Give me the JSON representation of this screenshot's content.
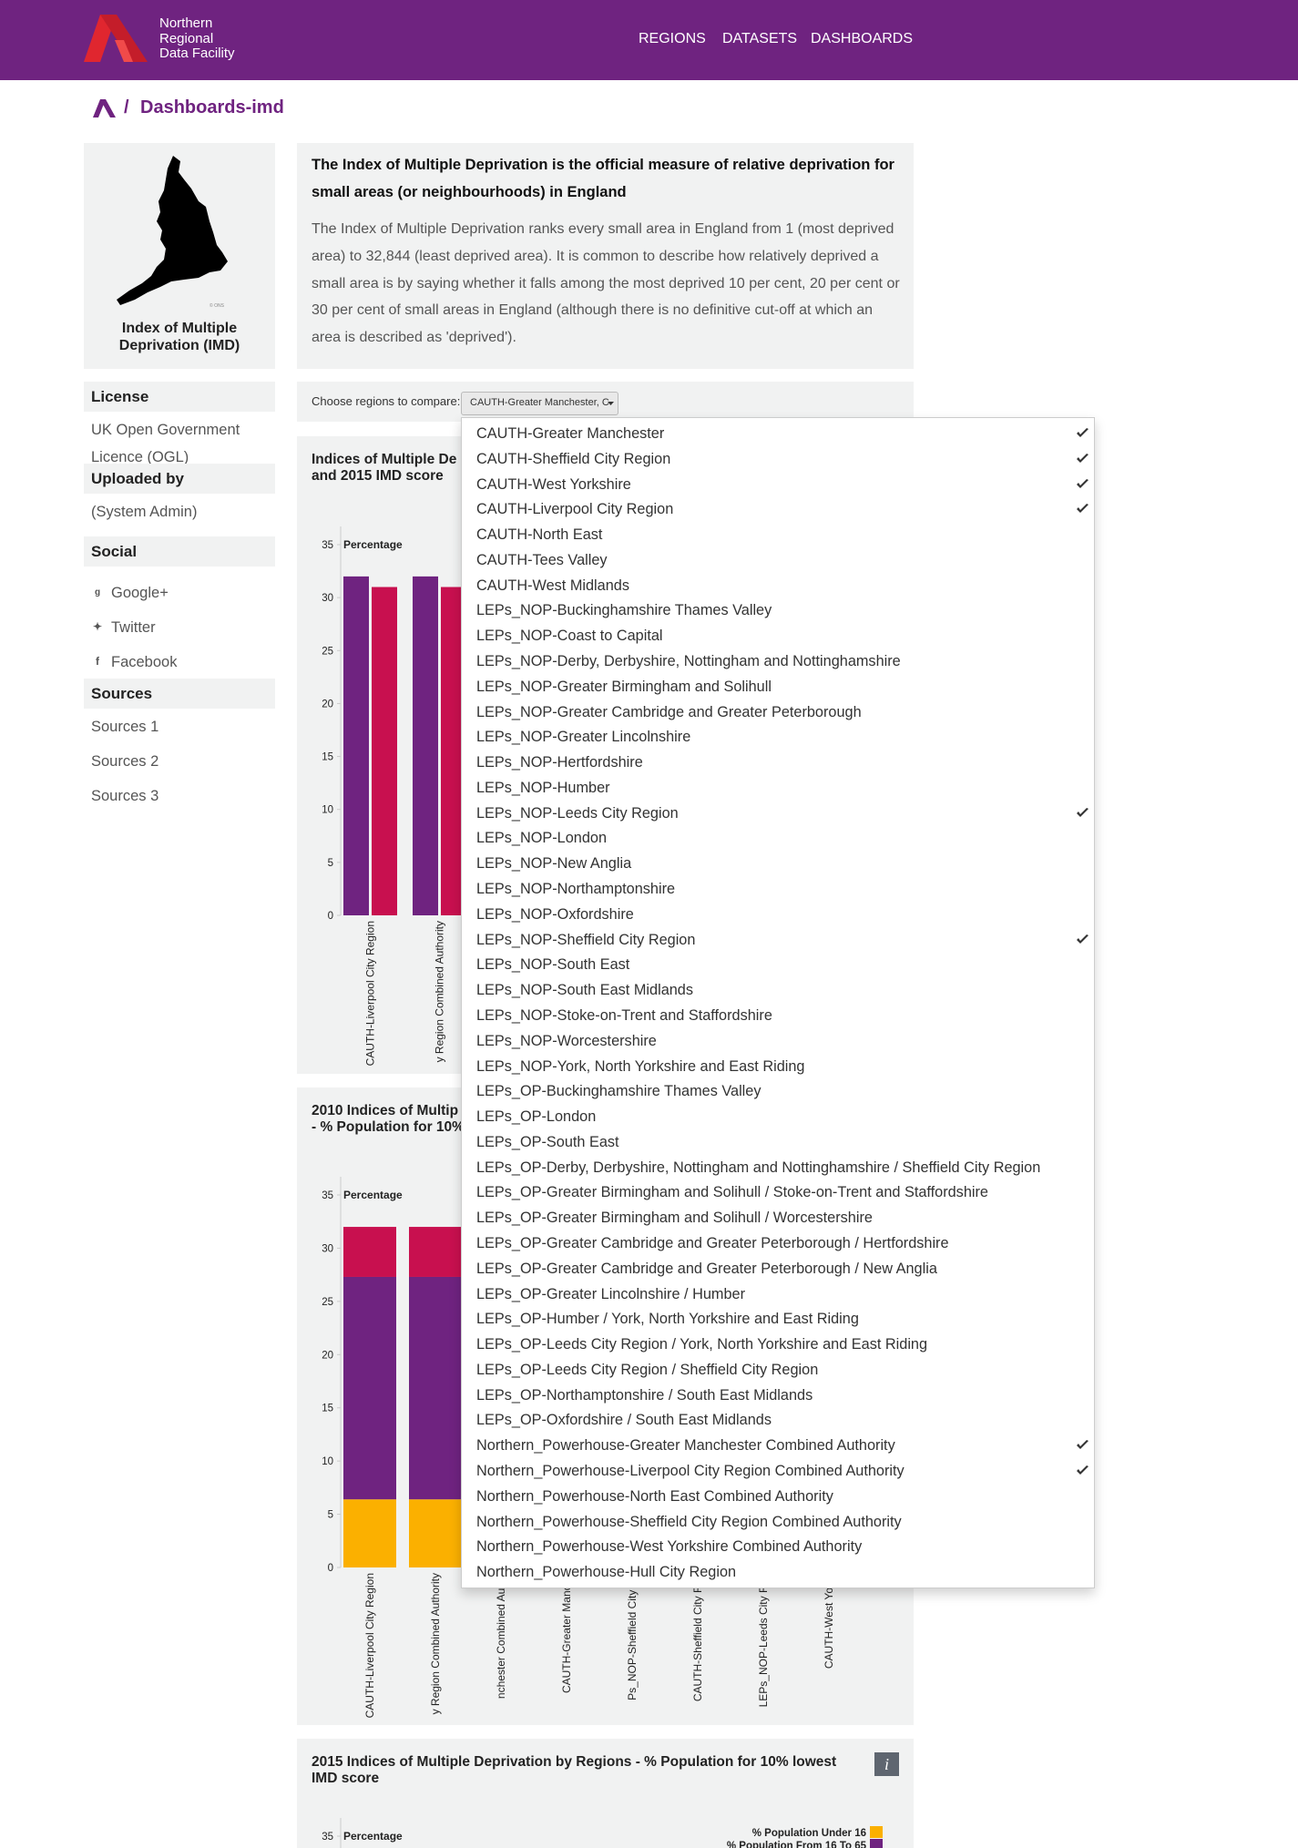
{
  "header": {
    "brand": [
      "Northern",
      "Regional",
      "Data Facility"
    ],
    "nav": [
      "REGIONS",
      "DATASETS",
      "DASHBOARDS"
    ]
  },
  "breadcrumb": {
    "separator": "/",
    "current": "Dashboards-imd"
  },
  "dataset_card": {
    "title": "Index of Multiple Deprivation (IMD)"
  },
  "sidebar": {
    "sections": [
      {
        "heading": "License",
        "items": [
          "UK Open Government Licence (OGL)"
        ]
      },
      {
        "heading": "Uploaded by",
        "items": [
          "(System Admin)"
        ]
      },
      {
        "heading": "Social",
        "items": [
          "Google+",
          "Twitter",
          "Facebook"
        ]
      },
      {
        "heading": "Sources",
        "items": [
          "Sources 1",
          "Sources 2",
          "Sources 3"
        ]
      }
    ]
  },
  "description": {
    "heading": "The Index of Multiple Deprivation is the official measure of relative deprivation for small areas (or neighbourhoods) in England",
    "body": "The Index of Multiple Deprivation ranks every small area in England from 1 (most deprived area) to 32,844 (least deprived area). It is common to describe how relatively deprived a small area is by saying whether it falls among the most deprived 10 per cent, 20 per cent or 30 per cent of small areas in England (although there is no definitive cut-off at which an area is described as 'deprived')."
  },
  "selector": {
    "label": "Choose regions to compare:",
    "button": "CAUTH-Greater Manchester, C",
    "options": [
      {
        "label": "CAUTH-Greater Manchester",
        "selected": true
      },
      {
        "label": "CAUTH-Sheffield City Region",
        "selected": true
      },
      {
        "label": "CAUTH-West Yorkshire",
        "selected": true
      },
      {
        "label": "CAUTH-Liverpool City Region",
        "selected": true
      },
      {
        "label": "CAUTH-North East",
        "selected": false
      },
      {
        "label": "CAUTH-Tees Valley",
        "selected": false
      },
      {
        "label": "CAUTH-West Midlands",
        "selected": false
      },
      {
        "label": "LEPs_NOP-Buckinghamshire Thames Valley",
        "selected": false
      },
      {
        "label": "LEPs_NOP-Coast to Capital",
        "selected": false
      },
      {
        "label": "LEPs_NOP-Derby, Derbyshire, Nottingham and Nottinghamshire",
        "selected": false
      },
      {
        "label": "LEPs_NOP-Greater Birmingham and Solihull",
        "selected": false
      },
      {
        "label": "LEPs_NOP-Greater Cambridge and Greater Peterborough",
        "selected": false
      },
      {
        "label": "LEPs_NOP-Greater Lincolnshire",
        "selected": false
      },
      {
        "label": "LEPs_NOP-Hertfordshire",
        "selected": false
      },
      {
        "label": "LEPs_NOP-Humber",
        "selected": false
      },
      {
        "label": "LEPs_NOP-Leeds City Region",
        "selected": true
      },
      {
        "label": "LEPs_NOP-London",
        "selected": false
      },
      {
        "label": "LEPs_NOP-New Anglia",
        "selected": false
      },
      {
        "label": "LEPs_NOP-Northamptonshire",
        "selected": false
      },
      {
        "label": "LEPs_NOP-Oxfordshire",
        "selected": false
      },
      {
        "label": "LEPs_NOP-Sheffield City Region",
        "selected": true
      },
      {
        "label": "LEPs_NOP-South East",
        "selected": false
      },
      {
        "label": "LEPs_NOP-South East Midlands",
        "selected": false
      },
      {
        "label": "LEPs_NOP-Stoke-on-Trent and Staffordshire",
        "selected": false
      },
      {
        "label": "LEPs_NOP-Worcestershire",
        "selected": false
      },
      {
        "label": "LEPs_NOP-York, North Yorkshire and East Riding",
        "selected": false
      },
      {
        "label": "LEPs_OP-Buckinghamshire Thames Valley",
        "selected": false
      },
      {
        "label": "LEPs_OP-London",
        "selected": false
      },
      {
        "label": "LEPs_OP-South East",
        "selected": false
      },
      {
        "label": "LEPs_OP-Derby, Derbyshire, Nottingham and Nottinghamshire / Sheffield City Region",
        "selected": false
      },
      {
        "label": "LEPs_OP-Greater Birmingham and Solihull / Stoke-on-Trent and Staffordshire",
        "selected": false
      },
      {
        "label": "LEPs_OP-Greater Birmingham and Solihull / Worcestershire",
        "selected": false
      },
      {
        "label": "LEPs_OP-Greater Cambridge and Greater Peterborough / Hertfordshire",
        "selected": false
      },
      {
        "label": "LEPs_OP-Greater Cambridge and Greater Peterborough / New Anglia",
        "selected": false
      },
      {
        "label": "LEPs_OP-Greater Lincolnshire / Humber",
        "selected": false
      },
      {
        "label": "LEPs_OP-Humber / York, North Yorkshire and East Riding",
        "selected": false
      },
      {
        "label": "LEPs_OP-Leeds City Region / York, North Yorkshire and East Riding",
        "selected": false
      },
      {
        "label": "LEPs_OP-Leeds City Region / Sheffield City Region",
        "selected": false
      },
      {
        "label": "LEPs_OP-Northamptonshire / South East Midlands",
        "selected": false
      },
      {
        "label": "LEPs_OP-Oxfordshire / South East Midlands",
        "selected": false
      },
      {
        "label": "Northern_Powerhouse-Greater Manchester Combined Authority",
        "selected": true
      },
      {
        "label": "Northern_Powerhouse-Liverpool City Region Combined Authority",
        "selected": true
      },
      {
        "label": "Northern_Powerhouse-North East Combined Authority",
        "selected": false
      },
      {
        "label": "Northern_Powerhouse-Sheffield City Region Combined Authority",
        "selected": false
      },
      {
        "label": "Northern_Powerhouse-West Yorkshire Combined Authority",
        "selected": false
      },
      {
        "label": "Northern_Powerhouse-Hull City Region",
        "selected": false
      }
    ]
  },
  "chart_data": [
    {
      "type": "bar",
      "title": [
        "Indices of Multiple De",
        "and 2015 IMD score"
      ],
      "y_label": "Percentage",
      "categories": [
        "CAUTH-Liverpool City Region",
        "y Region Combined Authority"
      ],
      "series": [
        {
          "color": "#6f2380",
          "values": [
            32,
            32
          ]
        },
        {
          "color": "#c8104f",
          "values": [
            31,
            31
          ]
        }
      ],
      "ylim": [
        0,
        35
      ],
      "yticks": [
        0,
        5,
        10,
        15,
        20,
        25,
        30,
        35
      ]
    },
    {
      "type": "stacked_bar",
      "title": [
        "2010 Indices of Multip",
        "- % Population for 10%"
      ],
      "y_label": "Percentage",
      "categories": [
        "CAUTH-Liverpool City Region",
        "y Region Combined Authority",
        "nchester Combined Autho",
        "CAUTH-Greater Manche",
        "Ps_NOP-Sheffield City Re",
        "CAUTH-Sheffield City Reg",
        "LEPs_NOP-Leeds City Reg",
        "CAUTH-West Yorks"
      ],
      "series": [
        {
          "color": "#fbb000",
          "values": [
            6.4,
            6.4,
            null,
            null,
            null,
            null,
            null,
            null
          ]
        },
        {
          "color": "#6f2380",
          "values": [
            20.9,
            20.9,
            null,
            null,
            null,
            null,
            null,
            null
          ]
        },
        {
          "color": "#c8104f",
          "values": [
            4.7,
            4.7,
            null,
            null,
            null,
            null,
            null,
            null
          ]
        }
      ],
      "ylim": [
        0,
        35
      ],
      "yticks": [
        0,
        5,
        10,
        15,
        20,
        25,
        30,
        35
      ]
    },
    {
      "type": "stacked_bar",
      "title": [
        "2015 Indices of Multiple Deprivation by Regions - % Population for 10% lowest",
        "IMD score"
      ],
      "y_label": "Percentage",
      "categories": [],
      "series": [
        {
          "name": "% Population Under 16",
          "color": "#fbb000",
          "values": []
        },
        {
          "name": "% Population From 16 To 65",
          "color": "#6f2380",
          "values": []
        }
      ],
      "ylim": [
        0,
        35
      ],
      "yticks": [
        35
      ],
      "legend": "top-right"
    }
  ]
}
